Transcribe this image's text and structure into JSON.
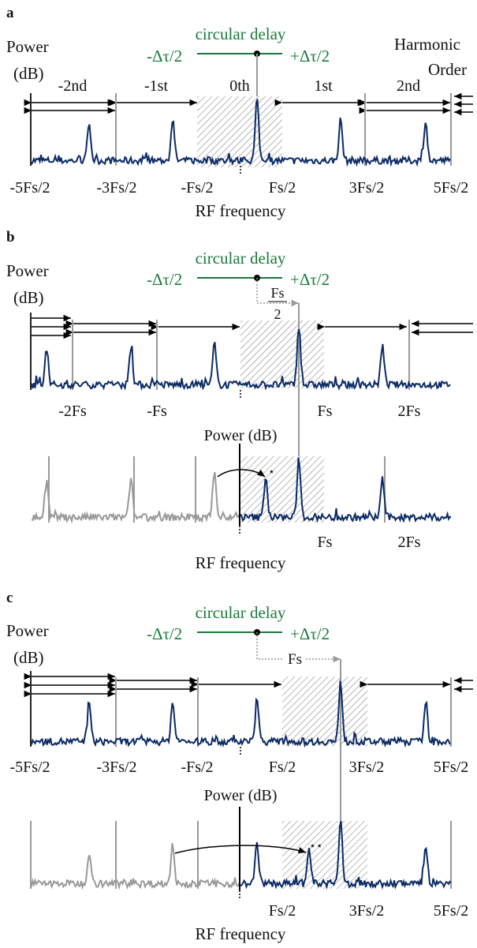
{
  "colors": {
    "spectrum": "#0b2a66",
    "grey": "#999999",
    "green": "#1a7a3c",
    "arrow": "#000000"
  },
  "panels": {
    "a": {
      "letter": "a",
      "delay_title": "circular delay",
      "delay_minus": "-Δτ/2",
      "delay_plus": "+Δτ/2",
      "power_label_line1": "Power",
      "power_label_line2": "(dB)",
      "harmonic_label_line1": "Harmonic",
      "harmonic_label_line2": "Order",
      "orders": [
        "-2nd",
        "-1st",
        "0th",
        "1st",
        "2nd"
      ],
      "ticks": [
        "-5Fs/2",
        "-3Fs/2",
        "-Fs/2",
        "Fs/2",
        "3Fs/2",
        "5Fs/2"
      ],
      "xlabel": "RF frequency"
    },
    "b": {
      "letter": "b",
      "delay_title": "circular delay",
      "delay_minus": "-Δτ/2",
      "delay_plus": "+Δτ/2",
      "power_label_line1": "Power",
      "power_label_line2": "(dB)",
      "shift_num": "Fs",
      "shift_den": "2",
      "ticks_top": [
        "-2Fs",
        "-Fs",
        "Fs",
        "2Fs"
      ],
      "power_inner": "Power (dB)",
      "ticks_bottom": [
        "Fs",
        "2Fs"
      ],
      "star": "⋆",
      "xlabel": "RF frequency"
    },
    "c": {
      "letter": "c",
      "delay_title": "circular delay",
      "delay_minus": "-Δτ/2",
      "delay_plus": "+Δτ/2",
      "power_label_line1": "Power",
      "power_label_line2": "(dB)",
      "shift_label": "Fs",
      "ticks_top": [
        "-5Fs/2",
        "-3Fs/2",
        "-Fs/2",
        "Fs/2",
        "3Fs/2",
        "5Fs/2"
      ],
      "power_inner": "Power (dB)",
      "ticks_bottom": [
        "Fs/2",
        "3Fs/2",
        "5Fs/2"
      ],
      "star": "⋆⋆",
      "xlabel": "RF frequency"
    }
  }
}
